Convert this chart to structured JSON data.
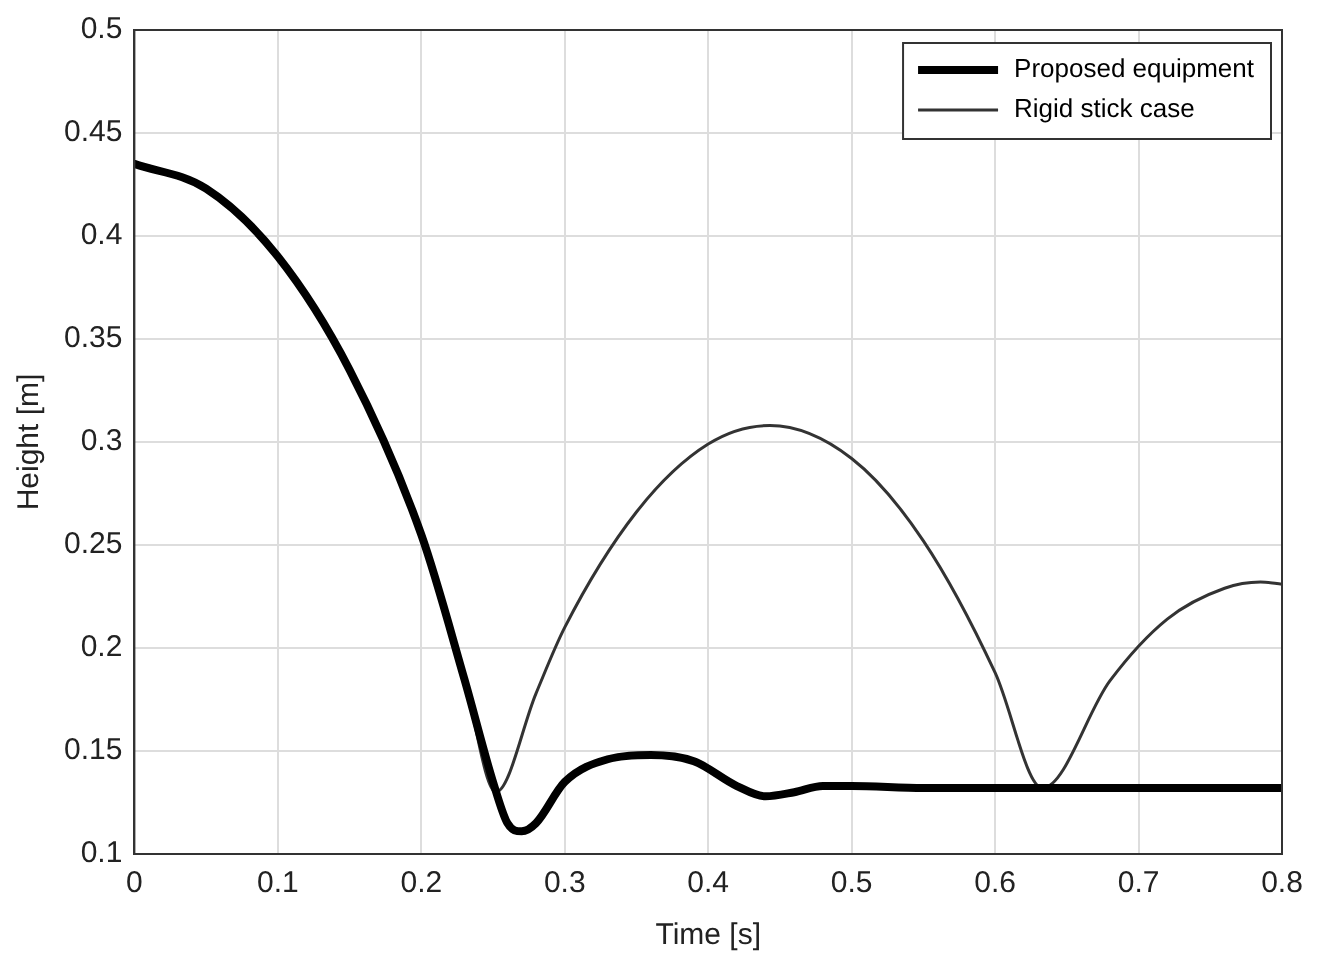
{
  "chart_data": {
    "type": "line",
    "xlabel": "Time [s]",
    "ylabel": "Height [m]",
    "xlim": [
      0,
      0.8
    ],
    "xticks": [
      0,
      0.1,
      0.2,
      0.3,
      0.4,
      0.5,
      0.6,
      0.7,
      0.8
    ],
    "ylim": [
      0.1,
      0.5
    ],
    "yticks": [
      0.1,
      0.15,
      0.2,
      0.25,
      0.3,
      0.35,
      0.4,
      0.45,
      0.5
    ],
    "grid": true,
    "legend": "top right",
    "marker": "none",
    "line_style": "solid",
    "series": [
      {
        "name": "Proposed equipment",
        "color": "#000000",
        "x": [
          0,
          0.05,
          0.1,
          0.15,
          0.2,
          0.23,
          0.25,
          0.26,
          0.27,
          0.28,
          0.3,
          0.33,
          0.36,
          0.39,
          0.42,
          0.44,
          0.46,
          0.48,
          0.5,
          0.55,
          0.8
        ],
        "values": [
          0.435,
          0.423,
          0.39,
          0.335,
          0.255,
          0.185,
          0.135,
          0.115,
          0.111,
          0.115,
          0.135,
          0.146,
          0.148,
          0.145,
          0.133,
          0.128,
          0.13,
          0.133,
          0.133,
          0.132,
          0.132
        ]
      },
      {
        "name": "Rigid stick case",
        "color": "#333333",
        "x": [
          0,
          0.05,
          0.1,
          0.15,
          0.2,
          0.23,
          0.252,
          0.28,
          0.3,
          0.35,
          0.4,
          0.443,
          0.5,
          0.55,
          0.6,
          0.633,
          0.68,
          0.72,
          0.76,
          0.785,
          0.8
        ],
        "values": [
          0.435,
          0.423,
          0.39,
          0.335,
          0.255,
          0.185,
          0.13,
          0.178,
          0.21,
          0.266,
          0.299,
          0.308,
          0.292,
          0.252,
          0.188,
          0.132,
          0.184,
          0.214,
          0.229,
          0.232,
          0.231
        ]
      }
    ]
  }
}
